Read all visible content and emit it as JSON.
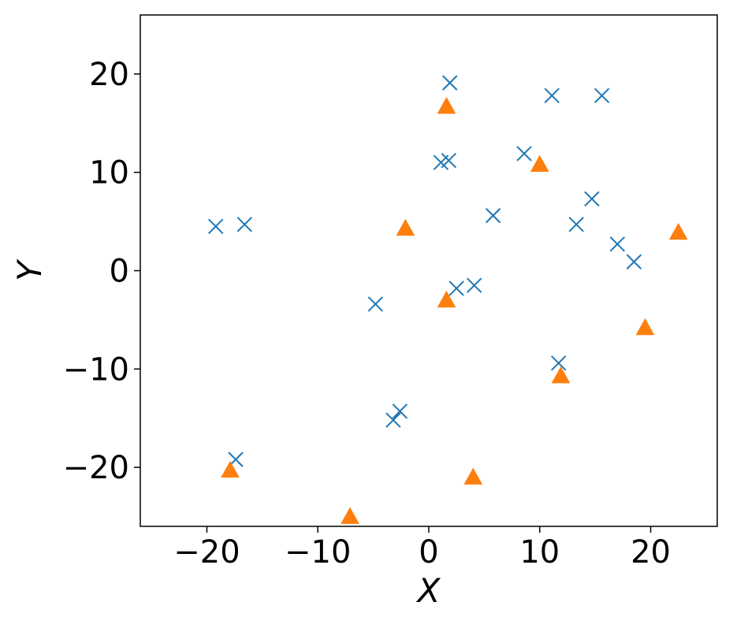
{
  "chart_data": {
    "type": "scatter",
    "title": "",
    "xlabel": "X",
    "ylabel": "Y",
    "xlim": [
      -26,
      26
    ],
    "ylim": [
      -26,
      26
    ],
    "xticks": [
      -20,
      -10,
      0,
      10,
      20
    ],
    "yticks": [
      -20,
      -10,
      0,
      10,
      20
    ],
    "xtick_labels": [
      "−20",
      "−10",
      "0",
      "10",
      "20"
    ],
    "ytick_labels": [
      "−20",
      "−10",
      "0",
      "10",
      "20"
    ],
    "grid": false,
    "legend": "none",
    "series": [
      {
        "marker": "x",
        "color": "#1f77b4",
        "points": [
          [
            -19.2,
            4.5
          ],
          [
            -16.6,
            4.7
          ],
          [
            -17.4,
            -19.2
          ],
          [
            -4.8,
            -3.4
          ],
          [
            -2.6,
            -14.3
          ],
          [
            -3.2,
            -15.2
          ],
          [
            1.1,
            11.0
          ],
          [
            1.8,
            11.2
          ],
          [
            1.9,
            19.1
          ],
          [
            2.5,
            -1.8
          ],
          [
            4.1,
            -1.5
          ],
          [
            5.8,
            5.6
          ],
          [
            8.6,
            11.9
          ],
          [
            11.1,
            17.8
          ],
          [
            15.6,
            17.8
          ],
          [
            11.7,
            -9.4
          ],
          [
            13.3,
            4.7
          ],
          [
            14.7,
            7.3
          ],
          [
            17.0,
            2.7
          ],
          [
            18.5,
            0.9
          ]
        ]
      },
      {
        "marker": "triangle",
        "color": "#ff7f0e",
        "points": [
          [
            -17.9,
            -20.3
          ],
          [
            -7.1,
            -25.0
          ],
          [
            -2.1,
            4.3
          ],
          [
            1.6,
            16.7
          ],
          [
            1.6,
            -3.0
          ],
          [
            4.0,
            -21.0
          ],
          [
            10.0,
            10.8
          ],
          [
            11.9,
            -10.7
          ],
          [
            19.5,
            -5.8
          ],
          [
            22.5,
            3.9
          ]
        ]
      }
    ]
  }
}
